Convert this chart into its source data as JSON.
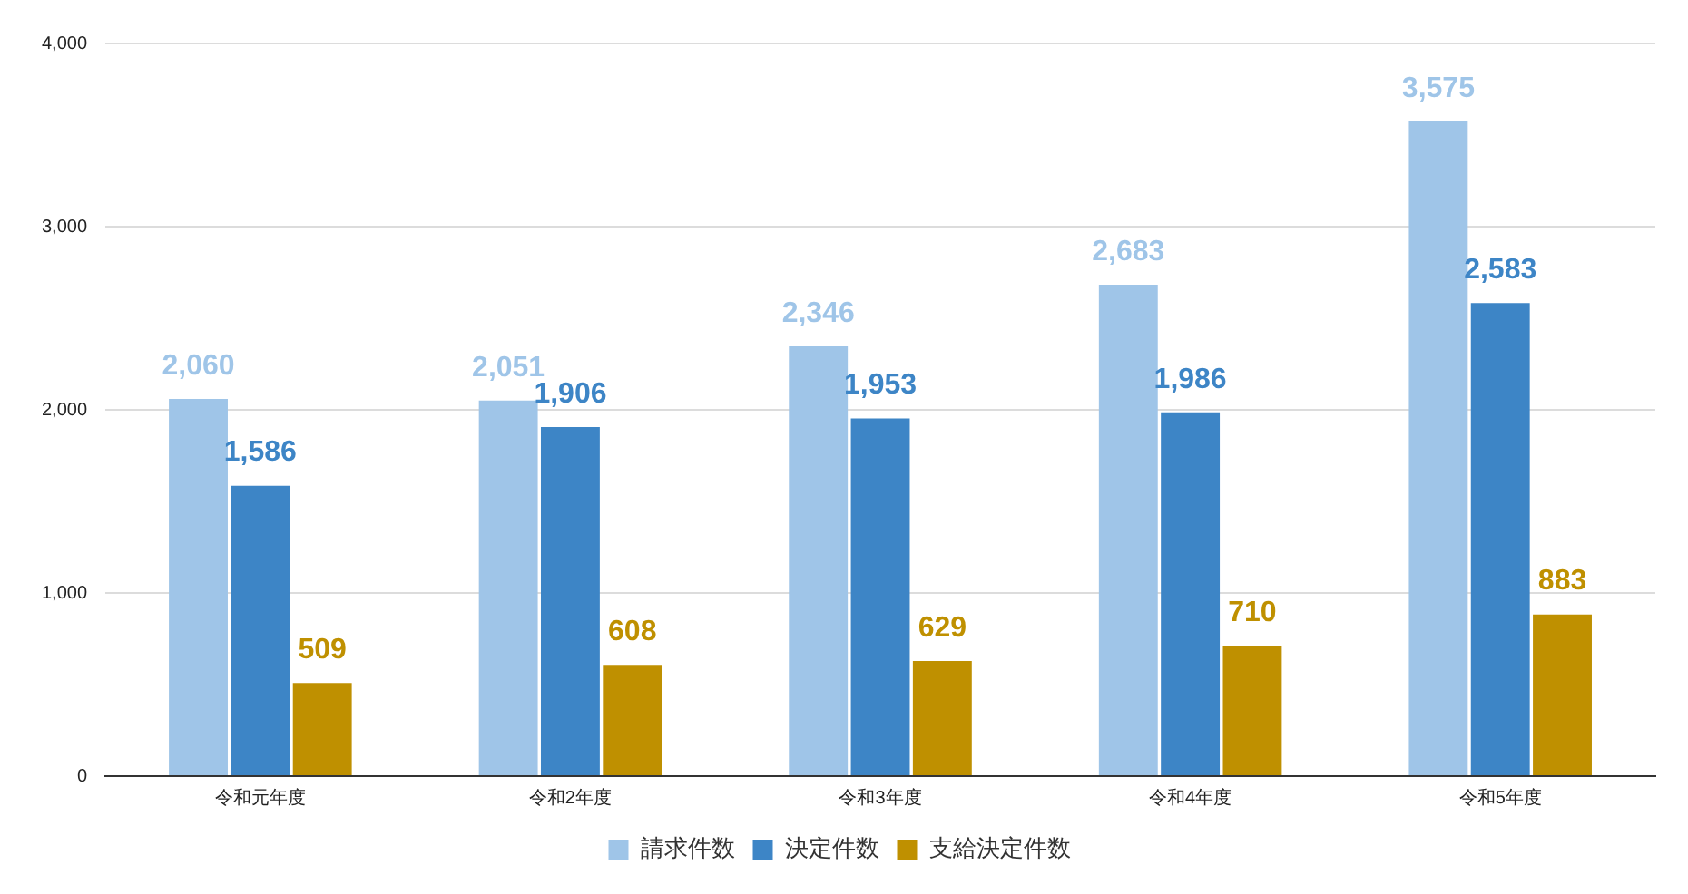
{
  "chart_data": {
    "type": "bar",
    "categories": [
      "令和元年度",
      "令和2年度",
      "令和3年度",
      "令和4年度",
      "令和5年度"
    ],
    "series": [
      {
        "name": "請求件数",
        "color": "#9fc5e8",
        "values": [
          2060,
          2051,
          2346,
          2683,
          3575
        ],
        "value_labels": [
          "2,060",
          "2,051",
          "2,346",
          "2,683",
          "3,575"
        ]
      },
      {
        "name": "決定件数",
        "color": "#3d85c6",
        "values": [
          1586,
          1906,
          1953,
          1986,
          2583
        ],
        "value_labels": [
          "1,586",
          "1,906",
          "1,953",
          "1,986",
          "2,583"
        ]
      },
      {
        "name": "支給決定件数",
        "color": "#bf9000",
        "values": [
          509,
          608,
          629,
          710,
          883
        ],
        "value_labels": [
          "509",
          "608",
          "629",
          "710",
          "883"
        ]
      }
    ],
    "ylim": [
      0,
      4000
    ],
    "yticks": [
      {
        "value": 0,
        "label": "0"
      },
      {
        "value": 1000,
        "label": "1,000"
      },
      {
        "value": 2000,
        "label": "2,000"
      },
      {
        "value": 3000,
        "label": "3,000"
      },
      {
        "value": 4000,
        "label": "4,000"
      }
    ],
    "grid": "y",
    "legend": "bottom"
  }
}
